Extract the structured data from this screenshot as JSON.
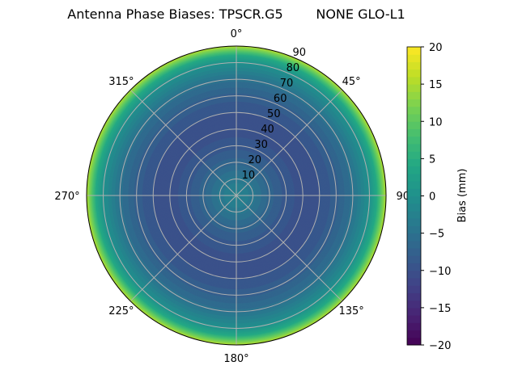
{
  "chart_data": {
    "type": "polar-contour",
    "title": "Antenna Phase Biases: TPSCR.G5        NONE GLO-L1",
    "theta_zero": "top",
    "theta_direction": "clockwise",
    "theta_ticks": [
      "0°",
      "45°",
      "90°",
      "135°",
      "180°",
      "225°",
      "270°",
      "315°"
    ],
    "theta_tick_values": [
      0,
      45,
      90,
      135,
      180,
      225,
      270,
      315
    ],
    "r_ticks": [
      "10",
      "20",
      "30",
      "40",
      "50",
      "60",
      "70",
      "80",
      "90"
    ],
    "r_tick_values": [
      10,
      20,
      30,
      40,
      50,
      60,
      70,
      80,
      90
    ],
    "rlim": [
      0,
      90
    ],
    "grid": true,
    "colormap": "viridis",
    "colorbar": {
      "label": "Bias (mm)",
      "range": [
        -20,
        20
      ],
      "ticks": [
        "20",
        "15",
        "10",
        "5",
        "0",
        "−5",
        "−10",
        "−15",
        "−20"
      ],
      "tick_values": [
        20,
        15,
        10,
        5,
        0,
        -5,
        -10,
        -15,
        -20
      ]
    },
    "radial_profile": {
      "zenith_deg": [
        0,
        10,
        20,
        30,
        40,
        50,
        60,
        70,
        80,
        85,
        90
      ],
      "bias_mm": [
        -2,
        -4,
        -7,
        -9,
        -10,
        -9.5,
        -8,
        -5,
        0,
        5,
        15
      ]
    }
  }
}
